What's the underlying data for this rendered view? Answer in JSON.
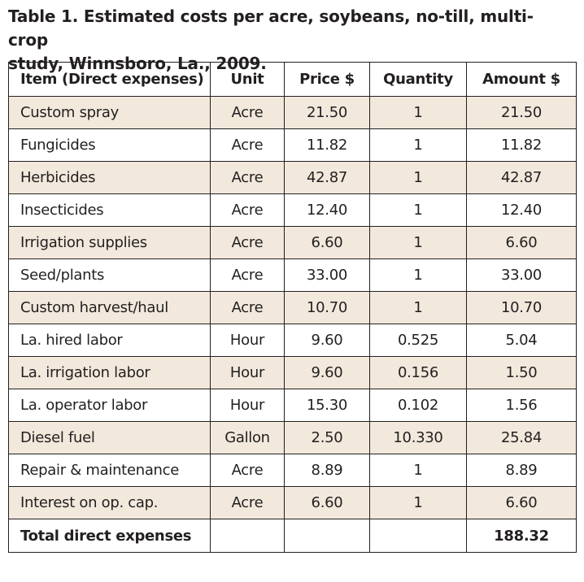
{
  "caption": {
    "line1": "Table 1. Estimated costs per acre, soybeans, no-till, multi-crop",
    "line2": "study, Winnsboro, La., 2009."
  },
  "colors": {
    "shaded_row": "#f2e9dc",
    "border": "#231f20",
    "text": "#231f20"
  },
  "table": {
    "headers": {
      "item": "Item (Direct expenses)",
      "unit": "Unit",
      "price": "Price $",
      "quantity": "Quantity",
      "amount": "Amount  $"
    },
    "rows": [
      {
        "item": "Custom spray",
        "unit": "Acre",
        "price": "21.50",
        "quantity": "1",
        "amount": "21.50",
        "shaded": true
      },
      {
        "item": "Fungicides",
        "unit": "Acre",
        "price": "11.82",
        "quantity": "1",
        "amount": "11.82",
        "shaded": false
      },
      {
        "item": "Herbicides",
        "unit": "Acre",
        "price": "42.87",
        "quantity": "1",
        "amount": "42.87",
        "shaded": true
      },
      {
        "item": "Insecticides",
        "unit": "Acre",
        "price": "12.40",
        "quantity": "1",
        "amount": "12.40",
        "shaded": false
      },
      {
        "item": "Irrigation supplies",
        "unit": "Acre",
        "price": "6.60",
        "quantity": "1",
        "amount": "6.60",
        "shaded": true
      },
      {
        "item": "Seed/plants",
        "unit": "Acre",
        "price": "33.00",
        "quantity": "1",
        "amount": "33.00",
        "shaded": false
      },
      {
        "item": "Custom harvest/haul",
        "unit": "Acre",
        "price": "10.70",
        "quantity": "1",
        "amount": "10.70",
        "shaded": true
      },
      {
        "item": "La. hired labor",
        "unit": "Hour",
        "price": "9.60",
        "quantity": "0.525",
        "amount": "5.04",
        "shaded": false
      },
      {
        "item": "La. irrigation labor",
        "unit": "Hour",
        "price": "9.60",
        "quantity": "0.156",
        "amount": "1.50",
        "shaded": true
      },
      {
        "item": "La. operator labor",
        "unit": "Hour",
        "price": "15.30",
        "quantity": "0.102",
        "amount": "1.56",
        "shaded": false
      },
      {
        "item": "Diesel fuel",
        "unit": "Gallon",
        "price": "2.50",
        "quantity": "10.330",
        "amount": "25.84",
        "shaded": true
      },
      {
        "item": "Repair & maintenance",
        "unit": "Acre",
        "price": "8.89",
        "quantity": "1",
        "amount": "8.89",
        "shaded": false
      },
      {
        "item": "Interest on op. cap.",
        "unit": "Acre",
        "price": "6.60",
        "quantity": "1",
        "amount": "6.60",
        "shaded": true
      }
    ],
    "total": {
      "label": "Total direct expenses",
      "amount": "188.32"
    }
  }
}
